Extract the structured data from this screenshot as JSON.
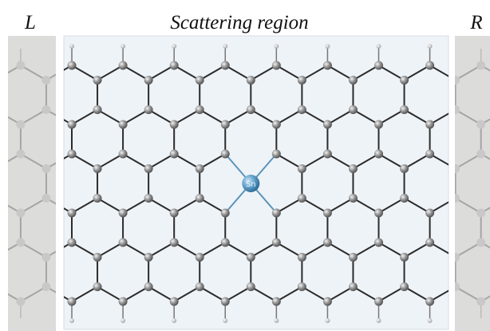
{
  "labels": {
    "left": "L",
    "center": "Scattering region",
    "right": "R"
  },
  "dopant": "Sn"
}
